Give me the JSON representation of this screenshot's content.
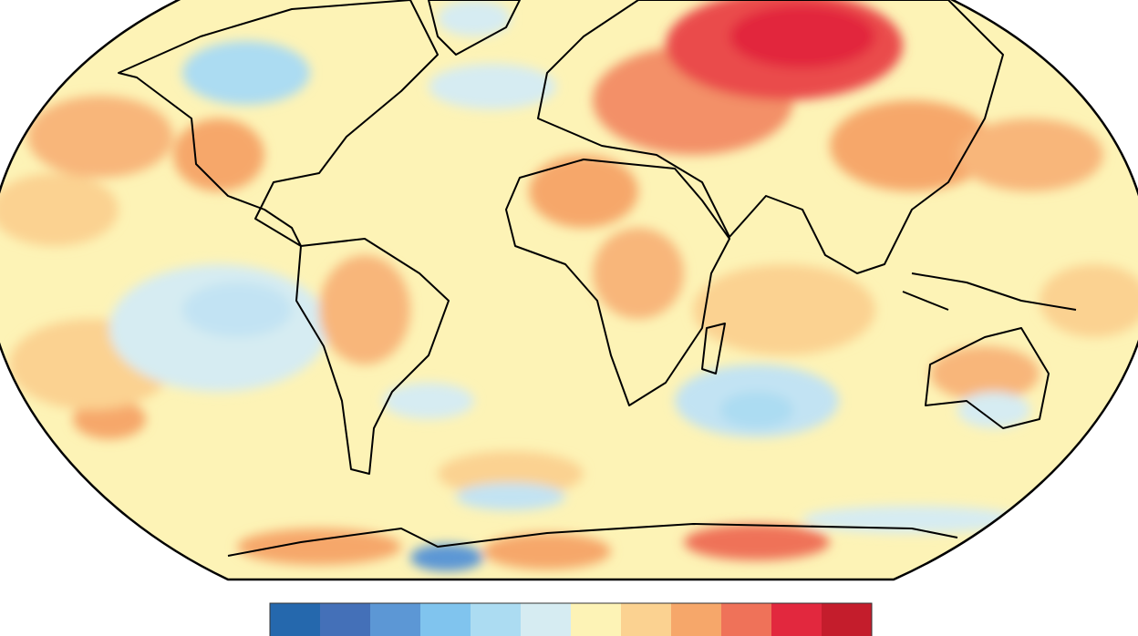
{
  "colorbar": {
    "colors": [
      "#2568ad",
      "#4470b8",
      "#5c97d5",
      "#80c4ee",
      "#acdcf2",
      "#d6ecf2",
      "#fdf3b6",
      "#fbd291",
      "#f6a76a",
      "#ef7259",
      "#e2283e",
      "#c41d2c"
    ]
  }
}
